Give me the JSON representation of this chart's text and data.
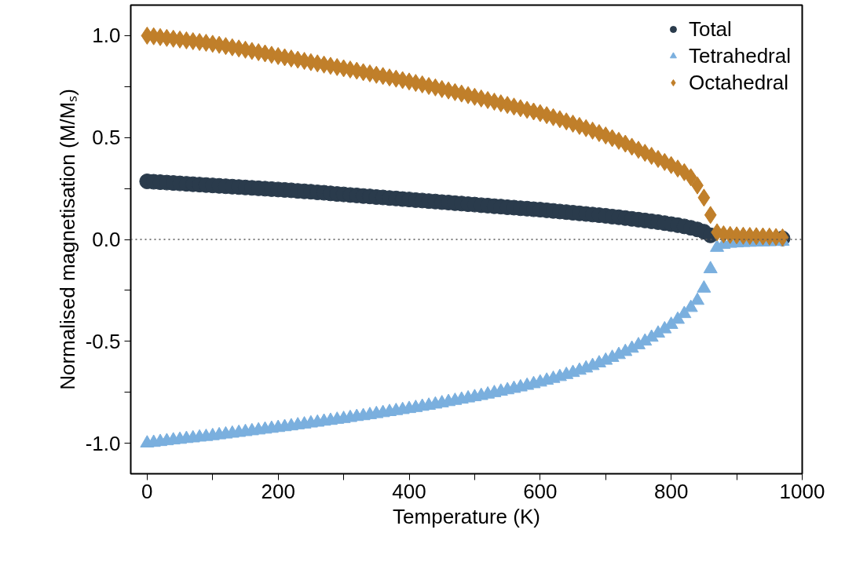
{
  "chart_data": {
    "type": "scatter",
    "xlabel": "Temperature (K)",
    "ylabel": "Normalised magnetisation (M/Mₛ)",
    "x": [
      0,
      10,
      20,
      30,
      40,
      50,
      60,
      70,
      80,
      90,
      100,
      110,
      120,
      130,
      140,
      150,
      160,
      170,
      180,
      190,
      200,
      210,
      220,
      230,
      240,
      250,
      260,
      270,
      280,
      290,
      300,
      310,
      320,
      330,
      340,
      350,
      360,
      370,
      380,
      390,
      400,
      410,
      420,
      430,
      440,
      450,
      460,
      470,
      480,
      490,
      500,
      510,
      520,
      530,
      540,
      550,
      560,
      570,
      580,
      590,
      600,
      610,
      620,
      630,
      640,
      650,
      660,
      670,
      680,
      690,
      700,
      710,
      720,
      730,
      740,
      750,
      760,
      770,
      780,
      790,
      800,
      810,
      820,
      830,
      840,
      850,
      860,
      870,
      880,
      890,
      900,
      910,
      920,
      930,
      940,
      950,
      960,
      970
    ],
    "series": [
      {
        "name": "Total",
        "color": "#2a3b4c",
        "marker": "circle",
        "values": [
          0.285,
          0.283,
          0.281,
          0.279,
          0.277,
          0.275,
          0.273,
          0.271,
          0.269,
          0.267,
          0.265,
          0.263,
          0.261,
          0.259,
          0.257,
          0.255,
          0.253,
          0.251,
          0.249,
          0.247,
          0.245,
          0.243,
          0.241,
          0.238,
          0.236,
          0.234,
          0.231,
          0.229,
          0.226,
          0.223,
          0.221,
          0.218,
          0.216,
          0.213,
          0.211,
          0.208,
          0.206,
          0.203,
          0.201,
          0.198,
          0.196,
          0.193,
          0.191,
          0.188,
          0.186,
          0.183,
          0.181,
          0.178,
          0.176,
          0.173,
          0.171,
          0.168,
          0.166,
          0.163,
          0.161,
          0.158,
          0.156,
          0.153,
          0.151,
          0.148,
          0.146,
          0.143,
          0.14,
          0.137,
          0.134,
          0.131,
          0.128,
          0.125,
          0.122,
          0.119,
          0.116,
          0.112,
          0.109,
          0.105,
          0.101,
          0.097,
          0.093,
          0.089,
          0.085,
          0.08,
          0.075,
          0.07,
          0.064,
          0.057,
          0.049,
          0.038,
          0.02,
          null,
          null,
          null,
          null,
          null,
          null,
          null,
          null,
          null,
          null,
          0.005
        ]
      },
      {
        "name": "Tetrahedral",
        "color": "#7aafde",
        "marker": "triangle",
        "values": [
          -1.0,
          -0.997,
          -0.993,
          -0.989,
          -0.985,
          -0.982,
          -0.978,
          -0.975,
          -0.971,
          -0.968,
          -0.964,
          -0.96,
          -0.956,
          -0.952,
          -0.948,
          -0.944,
          -0.94,
          -0.936,
          -0.932,
          -0.928,
          -0.924,
          -0.92,
          -0.916,
          -0.911,
          -0.907,
          -0.902,
          -0.898,
          -0.893,
          -0.889,
          -0.884,
          -0.88,
          -0.875,
          -0.87,
          -0.866,
          -0.861,
          -0.856,
          -0.851,
          -0.846,
          -0.841,
          -0.836,
          -0.831,
          -0.826,
          -0.82,
          -0.815,
          -0.809,
          -0.803,
          -0.797,
          -0.791,
          -0.785,
          -0.779,
          -0.773,
          -0.767,
          -0.76,
          -0.753,
          -0.746,
          -0.739,
          -0.732,
          -0.725,
          -0.717,
          -0.709,
          -0.701,
          -0.692,
          -0.683,
          -0.674,
          -0.664,
          -0.654,
          -0.643,
          -0.632,
          -0.62,
          -0.607,
          -0.594,
          -0.58,
          -0.566,
          -0.551,
          -0.535,
          -0.518,
          -0.5,
          -0.481,
          -0.461,
          -0.44,
          -0.418,
          -0.393,
          -0.365,
          -0.335,
          -0.3,
          -0.24,
          -0.145,
          -0.04,
          -0.025,
          -0.02,
          -0.018,
          -0.016,
          -0.015,
          -0.014,
          -0.013,
          -0.012,
          -0.011,
          -0.01
        ]
      },
      {
        "name": "Octahedral",
        "color": "#c07f2a",
        "marker": "diamond",
        "values": [
          1.0,
          0.997,
          0.993,
          0.989,
          0.985,
          0.981,
          0.977,
          0.973,
          0.969,
          0.965,
          0.96,
          0.955,
          0.949,
          0.943,
          0.937,
          0.931,
          0.925,
          0.919,
          0.913,
          0.906,
          0.9,
          0.894,
          0.888,
          0.882,
          0.876,
          0.87,
          0.864,
          0.858,
          0.852,
          0.846,
          0.84,
          0.834,
          0.828,
          0.821,
          0.815,
          0.808,
          0.802,
          0.795,
          0.789,
          0.782,
          0.775,
          0.768,
          0.761,
          0.753,
          0.746,
          0.738,
          0.731,
          0.723,
          0.716,
          0.708,
          0.7,
          0.692,
          0.684,
          0.676,
          0.668,
          0.66,
          0.652,
          0.644,
          0.636,
          0.628,
          0.62,
          0.61,
          0.6,
          0.59,
          0.579,
          0.568,
          0.557,
          0.546,
          0.534,
          0.522,
          0.51,
          0.497,
          0.484,
          0.47,
          0.455,
          0.44,
          0.425,
          0.41,
          0.395,
          0.38,
          0.365,
          0.348,
          0.33,
          0.305,
          0.265,
          0.205,
          0.12,
          0.035,
          0.025,
          0.022,
          0.02,
          0.018,
          0.017,
          0.016,
          0.015,
          0.014,
          0.012,
          0.01
        ]
      }
    ],
    "xlim": [
      -25,
      1000
    ],
    "ylim": [
      -1.15,
      1.15
    ],
    "xticks": [
      0,
      {
        "value": 100,
        "label": null
      },
      200,
      {
        "value": 300,
        "label": null
      },
      400,
      {
        "value": 500,
        "label": null
      },
      600,
      {
        "value": 700,
        "label": null
      },
      800,
      {
        "value": 900,
        "label": null
      },
      1000
    ],
    "yticks": [
      {
        "value": -1.0,
        "label": "-1.0"
      },
      {
        "value": -0.75,
        "label": null
      },
      {
        "value": -0.5,
        "label": "-0.5"
      },
      {
        "value": -0.25,
        "label": null
      },
      {
        "value": 0.0,
        "label": "0.0"
      },
      {
        "value": 0.25,
        "label": null
      },
      {
        "value": 0.5,
        "label": "0.5"
      },
      {
        "value": 0.75,
        "label": null
      },
      {
        "value": 1.0,
        "label": "1.0"
      }
    ],
    "ref_lines": [
      {
        "axis": "y",
        "value": 0,
        "label": null,
        "color": "#555555",
        "line_style": "dotted"
      }
    ],
    "grid": false,
    "legend": "top right"
  }
}
